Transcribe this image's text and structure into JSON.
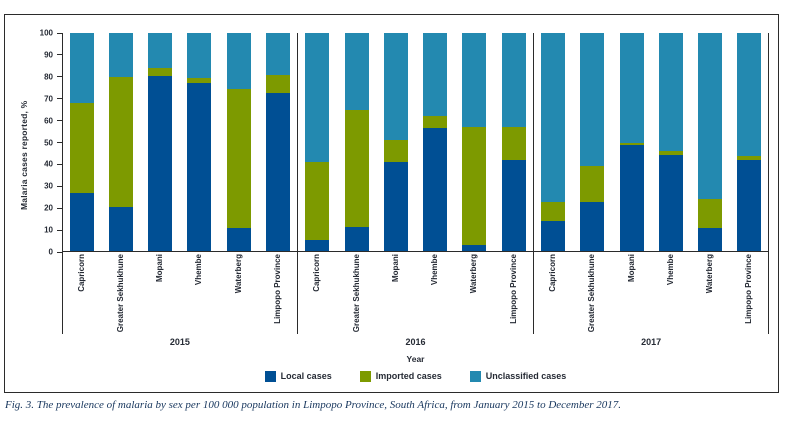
{
  "figure": {
    "caption": "Fig. 3. The prevalence of malaria by sex per 100 000 population in Limpopo Province, South Africa, from January 2015 to December 2017."
  },
  "chart_data": {
    "type": "bar",
    "stacked": true,
    "ylabel": "Malaria cases reported, %",
    "xlabel": "Year",
    "ylim": [
      0,
      100
    ],
    "yticks": [
      0,
      10,
      20,
      30,
      40,
      50,
      60,
      70,
      80,
      90,
      100
    ],
    "legend_position": "bottom",
    "series": [
      {
        "name": "Local cases",
        "color": "#004f94"
      },
      {
        "name": "Imported cases",
        "color": "#7d9a00"
      },
      {
        "name": "Unclassified cases",
        "color": "#2389b0"
      }
    ],
    "categories": [
      "Capricorn",
      "Greater Sekhukhune",
      "Mopani",
      "Vhembe",
      "Waterberg",
      "Limpopo Province"
    ],
    "groups": [
      {
        "label": "2015",
        "bars": [
          {
            "category": "Capricorn",
            "values": [
              27,
              41,
              32
            ]
          },
          {
            "category": "Greater Sekhukhune",
            "values": [
              20.5,
              59.5,
              20
            ]
          },
          {
            "category": "Mopani",
            "values": [
              80.5,
              3.5,
              16
            ]
          },
          {
            "category": "Vhembe",
            "values": [
              77,
              2.5,
              20.5
            ]
          },
          {
            "category": "Waterberg",
            "values": [
              11,
              63.5,
              25.5
            ]
          },
          {
            "category": "Limpopo Province",
            "values": [
              72.5,
              8.5,
              19
            ]
          }
        ]
      },
      {
        "label": "2016",
        "bars": [
          {
            "category": "Capricorn",
            "values": [
              5.5,
              35.5,
              59
            ]
          },
          {
            "category": "Greater Sekhukhune",
            "values": [
              11.5,
              53.5,
              35
            ]
          },
          {
            "category": "Mopani",
            "values": [
              41,
              10,
              49
            ]
          },
          {
            "category": "Vhembe",
            "values": [
              56.5,
              5.5,
              38
            ]
          },
          {
            "category": "Waterberg",
            "values": [
              3,
              54,
              43
            ]
          },
          {
            "category": "Limpopo Province",
            "values": [
              42,
              15,
              43
            ]
          }
        ]
      },
      {
        "label": "2017",
        "bars": [
          {
            "category": "Capricorn",
            "values": [
              14,
              9,
              77
            ]
          },
          {
            "category": "Greater Sekhukhune",
            "values": [
              23,
              16.5,
              60.5
            ]
          },
          {
            "category": "Mopani",
            "values": [
              49,
              1,
              50
            ]
          },
          {
            "category": "Vhembe",
            "values": [
              44.5,
              1.5,
              54
            ]
          },
          {
            "category": "Waterberg",
            "values": [
              11,
              13,
              76
            ]
          },
          {
            "category": "Limpopo Province",
            "values": [
              42,
              2,
              56
            ]
          }
        ]
      }
    ]
  }
}
